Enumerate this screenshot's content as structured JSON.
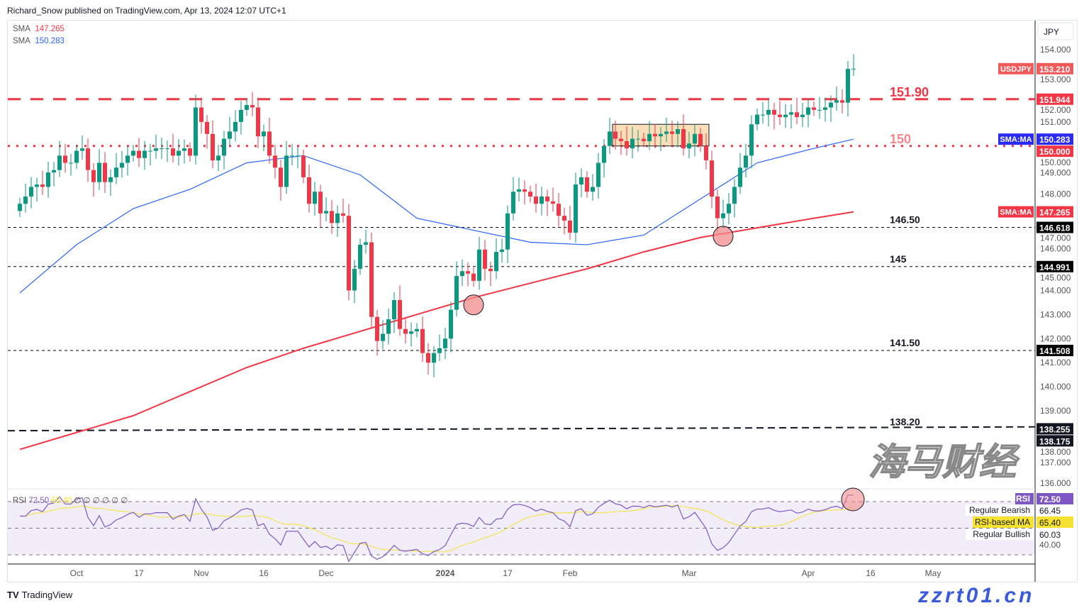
{
  "header": {
    "published": "Richard_Snow published on TradingView.com, Apr 13, 2024 12:07 UTC+1"
  },
  "legend": [
    {
      "label": "SMA",
      "value": "147.265",
      "color": "#f23645"
    },
    {
      "label": "SMA",
      "value": "150.283",
      "color": "#2962ff"
    }
  ],
  "currency_label": "JPY",
  "footer": {
    "brand": "TradingView"
  },
  "watermark": {
    "line1": "海马财经",
    "line2": "zzrt01.cn"
  },
  "chart_data": {
    "type": "candlestick",
    "symbol": "USDJPY",
    "ylim": [
      135.7,
      154.6
    ],
    "y_ticks": [
      "154.000",
      "153.000",
      "152.000",
      "151.000",
      "150.000",
      "149.000",
      "148.000",
      "147.000",
      "146.000",
      "145.000",
      "144.000",
      "143.000",
      "142.000",
      "141.000",
      "140.000",
      "139.000",
      "138.000",
      "137.000",
      "136.000"
    ],
    "x_ticks": [
      {
        "label": "Oct",
        "i": 10
      },
      {
        "label": "17",
        "i": 21
      },
      {
        "label": "Nov",
        "i": 32
      },
      {
        "label": "16",
        "i": 43
      },
      {
        "label": "Dec",
        "i": 54
      },
      {
        "label": "2024",
        "i": 75,
        "bold": true
      },
      {
        "label": "17",
        "i": 86
      },
      {
        "label": "Feb",
        "i": 97
      },
      {
        "label": "Mar",
        "i": 118
      },
      {
        "label": "Apr",
        "i": 139
      },
      {
        "label": "16",
        "i": 150
      },
      {
        "label": "May",
        "i": 161
      }
    ],
    "closes": [
      147.6,
      147.9,
      148.3,
      148.4,
      148.3,
      148.9,
      149.0,
      149.6,
      149.3,
      149.3,
      149.8,
      149.9,
      149.0,
      148.5,
      149.3,
      148.5,
      148.7,
      149.1,
      149.3,
      149.6,
      149.8,
      149.5,
      149.8,
      149.8,
      149.9,
      149.9,
      149.9,
      149.6,
      149.8,
      149.9,
      149.6,
      151.6,
      151.0,
      150.5,
      149.4,
      149.6,
      150.3,
      150.6,
      151.0,
      151.5,
      151.7,
      151.6,
      150.4,
      150.6,
      149.6,
      149.1,
      148.3,
      149.6,
      149.6,
      149.6,
      148.7,
      147.6,
      148.1,
      147.2,
      147.3,
      146.8,
      147.2,
      147.1,
      144.0,
      144.9,
      145.9,
      146.0,
      142.9,
      141.9,
      142.2,
      142.8,
      143.6,
      142.4,
      142.2,
      142.3,
      142.4,
      141.4,
      141.0,
      141.4,
      141.6,
      142.0,
      143.2,
      144.6,
      144.8,
      144.7,
      144.4,
      145.7,
      144.9,
      144.8,
      145.6,
      145.7,
      147.2,
      148.1,
      148.2,
      148.1,
      147.9,
      147.6,
      147.9,
      147.7,
      147.6,
      147.1,
      146.9,
      146.4,
      148.4,
      148.7,
      148.1,
      148.3,
      149.3,
      150.0,
      150.6,
      150.3,
      150.2,
      149.9,
      150.3,
      150.3,
      150.2,
      150.5,
      150.4,
      150.5,
      150.6,
      150.5,
      150.7,
      149.9,
      150.1,
      150.5,
      150.0,
      149.4,
      147.9,
      147.0,
      147.2,
      147.6,
      148.3,
      149.1,
      149.6,
      150.9,
      151.3,
      151.3,
      151.5,
      151.3,
      151.2,
      151.3,
      151.4,
      151.2,
      151.3,
      151.6,
      151.5,
      151.5,
      151.6,
      151.8,
      151.9,
      151.8,
      153.2,
      153.21
    ],
    "sma200": {
      "color": "#f23645",
      "every": 10,
      "values": [
        137.4,
        138.1,
        138.8,
        139.8,
        140.8,
        141.6,
        142.3,
        143.0,
        143.7,
        144.3,
        144.9,
        145.6,
        146.2,
        146.6,
        147.0,
        147.265
      ]
    },
    "sma50": {
      "color": "#2962ff",
      "every": 10,
      "values": [
        143.9,
        145.9,
        147.4,
        148.2,
        149.3,
        149.6,
        148.8,
        147.0,
        146.5,
        146.0,
        145.9,
        146.3,
        147.8,
        149.3,
        149.9,
        150.283
      ]
    },
    "levels": [
      {
        "price": 151.944,
        "label": "151.90",
        "axis": "151.944",
        "style": "dash",
        "color": "#f23645"
      },
      {
        "price": 150.0,
        "label": "150",
        "axis": "150.000",
        "style": "dot",
        "color": "#f23645"
      },
      {
        "price": 146.618,
        "label": "146.50",
        "axis": "146.618",
        "style": "thin",
        "color": "#000000"
      },
      {
        "price": 144.991,
        "label": "145",
        "axis": "144.991",
        "style": "thin",
        "color": "#000000"
      },
      {
        "price": 141.508,
        "label": "141.50",
        "axis": "141.508",
        "style": "thin",
        "color": "#000000"
      }
    ],
    "trendline": {
      "from": 138.175,
      "to": 138.255,
      "label": "138.20",
      "axis": [
        "138.255",
        "138.175"
      ]
    },
    "price_tags": [
      {
        "name": "USDJPY",
        "value": "153.210",
        "price": 153.21,
        "color": "#f05a5a"
      },
      {
        "name": "SMA:MA",
        "value": "150.283",
        "price": 150.283,
        "color": "#2a2af0"
      },
      {
        "name": "SMA:MA",
        "value": "147.265",
        "price": 147.265,
        "color": "#f23645"
      }
    ],
    "consolidation_box": {
      "i_from": 105,
      "i_to": 121,
      "top": 150.9,
      "bottom": 150.0
    },
    "highlight_circles": [
      {
        "i": 80,
        "price": 143.4
      },
      {
        "i": 124,
        "price": 146.25
      }
    ],
    "rsi": {
      "label": "RSI",
      "value": "72.50",
      "ma_value": "65.40",
      "extras": "∅ ∅ ∅ ∅ ∅ ∅",
      "levels": [
        70,
        50,
        30
      ],
      "color": "#7e57c2",
      "ma_color": "#f5e130",
      "table": [
        {
          "label": "RSI",
          "value": "72.50"
        },
        {
          "label": "Regular Bearish",
          "value": "66.45"
        },
        {
          "label": "RSI-based MA",
          "value": "65.40"
        },
        {
          "label": "Regular Bullish",
          "value": "60.03"
        }
      ],
      "axis_tick": "40.00"
    }
  }
}
